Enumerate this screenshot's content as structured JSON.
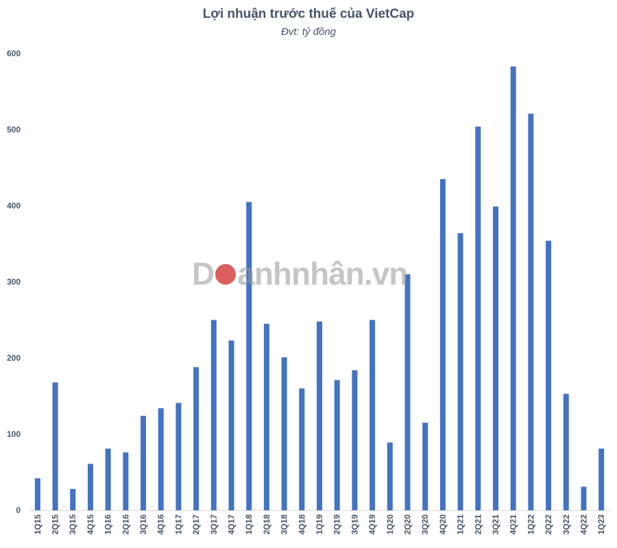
{
  "title": "Lợi nhuận trước thuế của VietCap",
  "subtitle": "Đvt: tỷ đồng",
  "watermark": {
    "before": "D",
    "after": "anhnhân.vn"
  },
  "colors": {
    "bar": "#4472c4",
    "axis": "#d9d9d9",
    "text": "#44546a"
  },
  "chart_data": {
    "type": "bar",
    "title": "Lợi nhuận trước thuế của VietCap",
    "subtitle": "Đvt: tỷ đồng",
    "categories": [
      "1Q15",
      "2Q15",
      "3Q15",
      "4Q15",
      "1Q16",
      "2Q16",
      "3Q16",
      "4Q16",
      "1Q17",
      "2Q17",
      "3Q17",
      "4Q17",
      "1Q18",
      "2Q18",
      "3Q18",
      "4Q18",
      "1Q19",
      "2Q19",
      "3Q19",
      "4Q19",
      "1Q20",
      "2Q20",
      "3Q20",
      "4Q20",
      "1Q21",
      "2Q21",
      "3Q21",
      "4Q21",
      "1Q22",
      "2Q22",
      "3Q22",
      "4Q22",
      "1Q23"
    ],
    "values": [
      42,
      168,
      28,
      61,
      81,
      76,
      124,
      134,
      141,
      188,
      250,
      223,
      405,
      245,
      201,
      160,
      248,
      171,
      184,
      250,
      89,
      310,
      115,
      435,
      364,
      504,
      399,
      583,
      521,
      354,
      153,
      31,
      81
    ],
    "ylim": [
      0,
      600
    ],
    "yticks": [
      0,
      100,
      200,
      300,
      400,
      500,
      600
    ],
    "xlabel": "",
    "ylabel": "",
    "grid": false,
    "legend": "none"
  }
}
